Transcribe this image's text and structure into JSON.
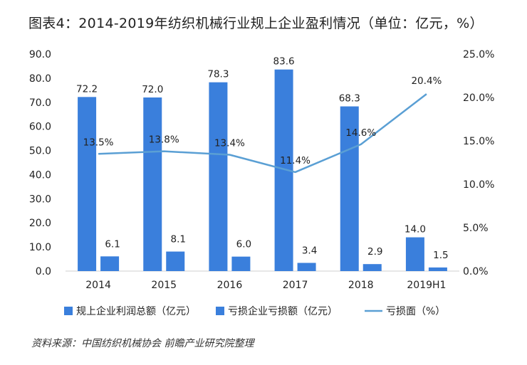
{
  "title": "图表4：2014-2019年纺织机械行业规上企业盈利情况（单位：亿元，%）",
  "source": "资料来源：中国纺织机械协会 前瞻产业研究院整理",
  "colors": {
    "bar_profit": "#3a7fdc",
    "bar_loss": "#3a7fdc",
    "line": "#5a9fd4"
  },
  "chart_data": {
    "type": "bar",
    "categories": [
      "2014",
      "2015",
      "2016",
      "2017",
      "2018",
      "2019H1"
    ],
    "series": [
      {
        "name": "规上企业利润总额（亿元）",
        "type": "bar",
        "axis": "left",
        "values": [
          72.2,
          72.0,
          78.3,
          83.6,
          68.3,
          14.0
        ],
        "labels": [
          "72.2",
          "72.0",
          "78.3",
          "83.6",
          "68.3",
          "14.0"
        ]
      },
      {
        "name": "亏损企业亏损额（亿元）",
        "type": "bar",
        "axis": "left",
        "values": [
          6.1,
          8.1,
          6.0,
          3.4,
          2.9,
          1.5
        ],
        "labels": [
          "6.1",
          "8.1",
          "6.0",
          "3.4",
          "2.9",
          "1.5"
        ]
      },
      {
        "name": "亏损面（%）",
        "type": "line",
        "axis": "right",
        "values": [
          13.5,
          13.8,
          13.4,
          11.4,
          14.6,
          20.4
        ],
        "labels": [
          "13.5%",
          "13.8%",
          "13.4%",
          "11.4%",
          "14.6%",
          "20.4%"
        ]
      }
    ],
    "ylim_left": [
      0,
      90
    ],
    "ylim_right": [
      0,
      25
    ],
    "yticks_left": [
      "0.0",
      "10.0",
      "20.0",
      "30.0",
      "40.0",
      "50.0",
      "60.0",
      "70.0",
      "80.0",
      "90.0"
    ],
    "yticks_right": [
      "0.0%",
      "5.0%",
      "10.0%",
      "15.0%",
      "20.0%",
      "25.0%"
    ],
    "grid": false,
    "legend_position": "bottom"
  }
}
